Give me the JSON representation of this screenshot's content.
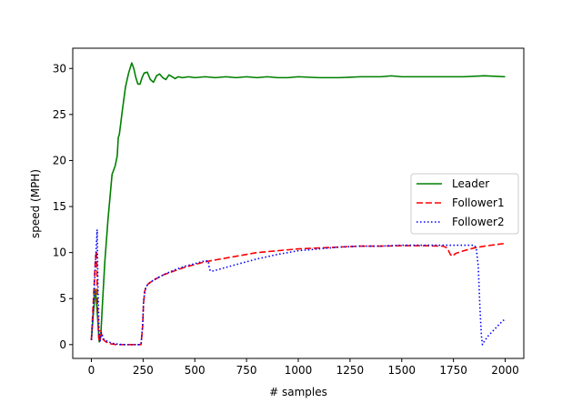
{
  "chart_data": {
    "type": "line",
    "title": "",
    "xlabel": "# samples",
    "ylabel": "speed (MPH)",
    "xlim": [
      -90,
      2090
    ],
    "ylim": [
      -1.5,
      32.2
    ],
    "xticks": [
      0,
      250,
      500,
      750,
      1000,
      1250,
      1500,
      1750,
      2000
    ],
    "yticks": [
      0,
      5,
      10,
      15,
      20,
      25,
      30
    ],
    "grid": false,
    "legend_position": "center-right",
    "series": [
      {
        "name": "Leader",
        "color": "#008000",
        "style": "solid",
        "x": [
          0,
          10,
          20,
          30,
          38,
          45,
          55,
          65,
          80,
          100,
          115,
          125,
          130,
          135,
          150,
          165,
          180,
          195,
          205,
          215,
          225,
          235,
          245,
          255,
          270,
          285,
          300,
          315,
          330,
          345,
          360,
          375,
          390,
          405,
          420,
          440,
          470,
          500,
          550,
          600,
          650,
          700,
          750,
          800,
          850,
          900,
          950,
          1000,
          1100,
          1200,
          1300,
          1400,
          1450,
          1500,
          1600,
          1700,
          1800,
          1900,
          2000
        ],
        "y": [
          0.5,
          3.5,
          6.0,
          3.0,
          0.3,
          0.8,
          5.0,
          9.0,
          13.5,
          18.5,
          19.4,
          20.5,
          22.5,
          22.8,
          25.5,
          28.0,
          29.5,
          30.6,
          30.0,
          29.0,
          28.3,
          28.3,
          29.0,
          29.5,
          29.6,
          28.8,
          28.5,
          29.2,
          29.4,
          29.0,
          28.8,
          29.3,
          29.1,
          28.9,
          29.1,
          29.0,
          29.1,
          29.0,
          29.1,
          29.0,
          29.1,
          29.0,
          29.1,
          29.0,
          29.1,
          29.0,
          29.0,
          29.1,
          29.0,
          29.0,
          29.1,
          29.1,
          29.2,
          29.1,
          29.1,
          29.1,
          29.1,
          29.2,
          29.1
        ]
      },
      {
        "name": "Follower1",
        "color": "#ff0000",
        "style": "dashed",
        "x": [
          0,
          10,
          20,
          25,
          30,
          35,
          40,
          45,
          55,
          70,
          90,
          120,
          150,
          200,
          240,
          248,
          252,
          258,
          265,
          275,
          300,
          350,
          400,
          450,
          500,
          550,
          600,
          650,
          700,
          800,
          900,
          1000,
          1100,
          1200,
          1300,
          1400,
          1500,
          1600,
          1700,
          1720,
          1735,
          1745,
          1760,
          1800,
          1850,
          1900,
          1950,
          2000
        ],
        "y": [
          0.5,
          5.0,
          9.5,
          10.2,
          4.0,
          0.8,
          0.3,
          1.5,
          0.6,
          0.3,
          0.1,
          0.0,
          0.0,
          0.0,
          0.0,
          2.0,
          4.5,
          5.8,
          6.3,
          6.6,
          7.0,
          7.6,
          8.0,
          8.4,
          8.7,
          9.0,
          9.2,
          9.4,
          9.6,
          10.0,
          10.2,
          10.4,
          10.5,
          10.6,
          10.7,
          10.7,
          10.75,
          10.75,
          10.7,
          10.5,
          9.8,
          9.6,
          9.9,
          10.2,
          10.5,
          10.7,
          10.85,
          11.0
        ]
      },
      {
        "name": "Follower2",
        "color": "#0000ff",
        "style": "dotted",
        "x": [
          0,
          10,
          20,
          28,
          32,
          38,
          42,
          48,
          60,
          80,
          110,
          150,
          200,
          240,
          248,
          252,
          258,
          265,
          275,
          300,
          350,
          400,
          450,
          500,
          550,
          565,
          570,
          575,
          590,
          620,
          700,
          800,
          900,
          1000,
          1100,
          1200,
          1300,
          1400,
          1500,
          1600,
          1700,
          1800,
          1850,
          1860,
          1870,
          1878,
          1885,
          1890,
          1900,
          1920,
          1950,
          1980,
          2000
        ],
        "y": [
          0.5,
          4.0,
          9.0,
          12.5,
          6.0,
          1.0,
          0.4,
          1.3,
          0.6,
          0.3,
          0.1,
          0.0,
          0.0,
          0.0,
          2.2,
          4.5,
          5.8,
          6.3,
          6.6,
          7.0,
          7.6,
          8.1,
          8.5,
          8.8,
          9.1,
          9.1,
          8.3,
          8.0,
          8.0,
          8.2,
          8.7,
          9.3,
          9.8,
          10.2,
          10.4,
          10.6,
          10.7,
          10.7,
          10.8,
          10.8,
          10.8,
          10.8,
          10.8,
          10.5,
          8.5,
          4.0,
          1.0,
          0.0,
          0.4,
          1.0,
          1.7,
          2.4,
          2.8
        ]
      }
    ]
  }
}
